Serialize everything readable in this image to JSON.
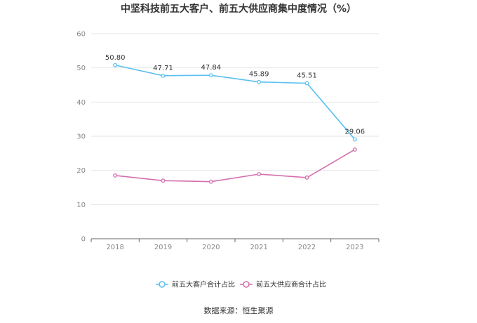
{
  "chart_data": {
    "type": "line",
    "title": "中坚科技前五大客户、前五大供应商集中度情况（%）",
    "categories": [
      "2018",
      "2019",
      "2020",
      "2021",
      "2022",
      "2023"
    ],
    "ylim": [
      0,
      60
    ],
    "yticks": [
      "0",
      "10",
      "20",
      "30",
      "40",
      "50",
      "60"
    ],
    "grid": true,
    "legend_position": "bottom",
    "series": [
      {
        "name": "前五大客户合计占比",
        "color": "#5bc0f2",
        "values": [
          50.8,
          47.71,
          47.84,
          45.89,
          45.51,
          29.06
        ],
        "labels": [
          "50.80",
          "47.71",
          "47.84",
          "45.89",
          "45.51",
          "29.06"
        ]
      },
      {
        "name": "前五大供应商合计占比",
        "color": "#d46fae",
        "values": [
          18.5,
          17.0,
          16.7,
          18.9,
          17.9,
          26.1
        ]
      }
    ],
    "source": "数据来源：恒生聚源"
  }
}
